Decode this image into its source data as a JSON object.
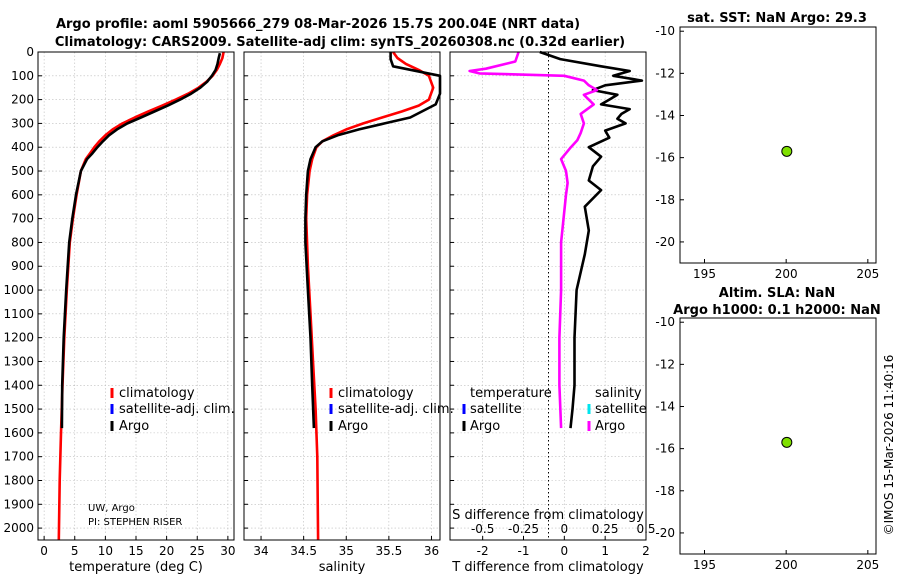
{
  "header": {
    "line1": "Argo profile: aoml 5905666_279 08-Mar-2026 15.7S 200.04E (NRT data)",
    "line2": "Climatology: CARS2009. Satellite-adj clim: synTS_20260308.nc (0.32d earlier)",
    "timestamp": "©IMOS 15-Mar-2026 11:40:16"
  },
  "colors": {
    "climatology": "#ff0000",
    "satellite": "#0000ff",
    "argo": "#000000",
    "sal_satellite": "#00e5ee",
    "sal_argo": "#ff00ff",
    "marker": "#7fe000"
  },
  "chart_data": [
    {
      "type": "line",
      "title": "",
      "xlabel": "temperature (deg C)",
      "ylabel": "",
      "xlim": [
        -1,
        31
      ],
      "ylim": [
        2050,
        0
      ],
      "grid": true,
      "xticks": [
        "0",
        "5",
        "10",
        "15",
        "20",
        "25",
        "30"
      ],
      "yticks": [
        "0",
        "100",
        "200",
        "300",
        "400",
        "500",
        "600",
        "700",
        "800",
        "900",
        "1000",
        "1100",
        "1200",
        "1300",
        "1400",
        "1500",
        "1600",
        "1700",
        "1800",
        "1900",
        "2000"
      ],
      "legend": {
        "position": "lower-right",
        "entries": [
          "climatology",
          "satellite-adj. clim.",
          "Argo"
        ]
      },
      "annotations": [
        "UW, Argo",
        "PI: STEPHEN RISER"
      ],
      "series": [
        {
          "name": "climatology",
          "color": "#ff0000",
          "x": [
            29.3,
            29.1,
            28.7,
            28.2,
            27.5,
            26.5,
            25.2,
            23.5,
            21.5,
            19.3,
            17.0,
            14.8,
            12.8,
            11.2,
            10.0,
            9.0,
            8.2,
            7.5,
            6.8,
            6.0,
            5.3,
            4.7,
            4.2,
            3.7,
            3.3,
            3.0,
            2.75,
            2.55,
            2.4
          ],
          "y": [
            0,
            25,
            50,
            75,
            100,
            125,
            150,
            175,
            200,
            225,
            250,
            275,
            300,
            325,
            350,
            375,
            400,
            425,
            450,
            500,
            600,
            700,
            800,
            1000,
            1200,
            1400,
            1600,
            1800,
            2050
          ]
        },
        {
          "name": "Argo",
          "color": "#000000",
          "x": [
            28.7,
            28.5,
            28.3,
            28.0,
            27.4,
            26.6,
            25.5,
            24.0,
            22.2,
            20.2,
            18.0,
            15.8,
            13.6,
            11.9,
            10.6,
            9.6,
            8.7,
            7.9,
            7.0,
            6.0,
            5.2,
            4.6,
            4.1,
            3.6,
            3.2,
            2.95,
            2.9
          ],
          "y": [
            5,
            25,
            50,
            75,
            100,
            125,
            150,
            175,
            200,
            225,
            250,
            275,
            300,
            325,
            350,
            375,
            400,
            425,
            450,
            500,
            600,
            700,
            800,
            1000,
            1200,
            1400,
            1580
          ]
        }
      ]
    },
    {
      "type": "line",
      "title": "",
      "xlabel": "salinity",
      "ylabel": "",
      "xlim": [
        33.8,
        36.1
      ],
      "ylim": [
        2050,
        0
      ],
      "grid": true,
      "xticks": [
        "34",
        "34.5",
        "35",
        "35.5",
        "36"
      ],
      "legend": {
        "position": "lower-right",
        "entries": [
          "climatology",
          "satellite-adj. clim.",
          "Argo"
        ]
      },
      "series": [
        {
          "name": "climatology",
          "color": "#ff0000",
          "x": [
            35.55,
            35.6,
            35.7,
            35.85,
            35.97,
            36.02,
            35.97,
            35.85,
            35.65,
            35.42,
            35.2,
            35.0,
            34.85,
            34.72,
            34.65,
            34.6,
            34.57,
            34.54,
            34.53,
            34.55,
            34.58,
            34.61,
            34.64,
            34.66,
            34.67
          ],
          "y": [
            0,
            25,
            50,
            75,
            100,
            150,
            200,
            225,
            250,
            275,
            300,
            325,
            350,
            375,
            400,
            450,
            500,
            600,
            700,
            900,
            1100,
            1300,
            1500,
            1700,
            2050
          ]
        },
        {
          "name": "Argo",
          "color": "#000000",
          "x": [
            35.52,
            35.52,
            35.55,
            36.1,
            36.1,
            36.05,
            35.75,
            35.45,
            35.15,
            34.9,
            34.72,
            34.64,
            34.58,
            34.55,
            34.53,
            34.52,
            34.52,
            34.55,
            34.58,
            34.6,
            34.62
          ],
          "y": [
            0,
            30,
            60,
            100,
            175,
            220,
            275,
            300,
            325,
            350,
            375,
            400,
            450,
            500,
            600,
            700,
            800,
            1000,
            1200,
            1400,
            1580
          ]
        }
      ]
    },
    {
      "type": "line",
      "title": "",
      "xlabel": "T difference from climatology",
      "x2label": "S difference from climatology",
      "xlim": [
        -2.8,
        2.0
      ],
      "x2lim": [
        -0.7,
        0.5
      ],
      "ylim": [
        2050,
        0
      ],
      "grid": true,
      "xticks": [
        "-2",
        "-1",
        "0",
        "1",
        "2"
      ],
      "x2ticks": [
        "-0.5",
        "-0.25",
        "0",
        "0.25",
        "0.5"
      ],
      "legend": {
        "position": "lower",
        "temperature": [
          "temperature",
          "satellite",
          "Argo"
        ],
        "salinity": [
          "salinity",
          "satellite",
          "Argo"
        ]
      },
      "series": [
        {
          "name": "T Argo",
          "color": "#000000",
          "axis": "T",
          "x": [
            -0.6,
            -0.1,
            0.9,
            1.6,
            1.2,
            1.9,
            1.0,
            0.7,
            1.3,
            1.1,
            0.9,
            1.6,
            1.4,
            1.3,
            1.5,
            1.0,
            1.1,
            0.6,
            0.9,
            0.7,
            0.6,
            0.9,
            0.5,
            0.6,
            0.5,
            0.3,
            0.25,
            0.25,
            0.2,
            0.15
          ],
          "y": [
            0,
            30,
            60,
            80,
            100,
            120,
            140,
            160,
            180,
            200,
            220,
            240,
            260,
            280,
            300,
            330,
            360,
            400,
            440,
            480,
            540,
            580,
            650,
            750,
            850,
            1000,
            1200,
            1400,
            1500,
            1580
          ]
        },
        {
          "name": "S Argo",
          "color": "#ff00ff",
          "axis": "S",
          "x": [
            -0.28,
            -0.3,
            -0.48,
            -0.58,
            -0.52,
            0.0,
            0.12,
            0.15,
            0.2,
            0.12,
            0.18,
            0.1,
            0.12,
            0.1,
            0.08,
            0.04,
            -0.02,
            0.01,
            0.02,
            0.01,
            -0.02,
            -0.02,
            -0.03,
            -0.03,
            -0.02
          ],
          "y": [
            0,
            40,
            70,
            80,
            90,
            100,
            120,
            140,
            160,
            180,
            220,
            260,
            300,
            340,
            370,
            400,
            450,
            500,
            550,
            600,
            800,
            1000,
            1200,
            1400,
            1580
          ]
        }
      ]
    },
    {
      "type": "scatter",
      "title": "sat. SST: NaN Argo: 29.3",
      "xlim": [
        193.5,
        205.5
      ],
      "ylim": [
        -21,
        -9.8
      ],
      "xticks": [
        "195",
        "200",
        "205"
      ],
      "yticks": [
        "-10",
        "-12",
        "-14",
        "-16",
        "-18",
        "-20"
      ],
      "points": [
        {
          "x": 200.04,
          "y": -15.7
        }
      ]
    },
    {
      "type": "scatter",
      "title": "Altim. SLA: NaN",
      "subtitle": "Argo h1000: 0.1 h2000: NaN",
      "xlim": [
        193.5,
        205.5
      ],
      "ylim": [
        -21,
        -9.8
      ],
      "xticks": [
        "195",
        "200",
        "205"
      ],
      "yticks": [
        "-10",
        "-12",
        "-14",
        "-16",
        "-18",
        "-20"
      ],
      "points": [
        {
          "x": 200.04,
          "y": -15.7
        }
      ]
    }
  ]
}
